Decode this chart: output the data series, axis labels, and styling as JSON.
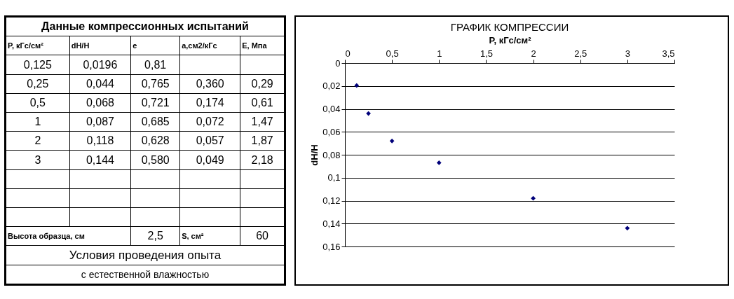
{
  "chart_data": [
    {
      "type": "other",
      "title": "Данные компрессионных испытаний",
      "annotations": [
        "P, кГс/см²",
        "dH/H",
        "e",
        "a,см2/кГс",
        "E, Мпа",
        "0,125",
        "0,0196",
        "0,81",
        "0,25",
        "0,044",
        "0,765",
        "0,360",
        "0,29",
        "0,5",
        "0,068",
        "0,721",
        "0,174",
        "0,61",
        "1",
        "0,087",
        "0,685",
        "0,072",
        "1,47",
        "2",
        "0,118",
        "0,628",
        "0,057",
        "1,87",
        "3",
        "0,144",
        "0,580",
        "0,049",
        "2,18",
        "Высота образца, см",
        "2,5",
        "S, см²",
        "60",
        "Условия проведения опыта",
        "с естественной влажностью"
      ]
    },
    {
      "type": "scatter",
      "title": "ГРАФИК КОМПРЕССИИ",
      "xlabel": "P, кГс/см²",
      "ylabel": "dH/H",
      "x": [
        0.125,
        0.25,
        0.5,
        1,
        2,
        3
      ],
      "series": [
        {
          "color": "#00007a",
          "values": [
            0.0196,
            0.044,
            0.068,
            0.087,
            0.118,
            0.144
          ]
        }
      ],
      "xlim": [
        0,
        3.5
      ],
      "xticks": [
        0,
        {
          "value": 0.5,
          "label": "0,5"
        },
        1,
        {
          "value": 1.5,
          "label": "1,5"
        },
        2,
        {
          "value": 2.5,
          "label": "2,5"
        },
        3,
        {
          "value": 3.5,
          "label": "3,5"
        }
      ],
      "ylim": [
        0.16,
        0
      ],
      "yticks": [
        0,
        {
          "value": 0.02,
          "label": "0,02"
        },
        {
          "value": 0.04,
          "label": "0,04"
        },
        {
          "value": 0.06,
          "label": "0,06"
        },
        {
          "value": 0.08,
          "label": "0,08"
        },
        {
          "value": 0.1,
          "label": "0,1"
        },
        {
          "value": 0.12,
          "label": "0,12"
        },
        {
          "value": 0.14,
          "label": "0,14"
        },
        {
          "value": 0.16,
          "label": "0,16"
        }
      ],
      "grid": "y",
      "marker": "diamond"
    }
  ]
}
